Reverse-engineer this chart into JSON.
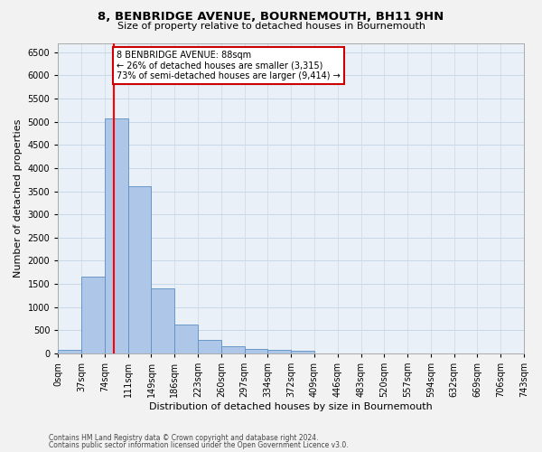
{
  "title": "8, BENBRIDGE AVENUE, BOURNEMOUTH, BH11 9HN",
  "subtitle": "Size of property relative to detached houses in Bournemouth",
  "xlabel": "Distribution of detached houses by size in Bournemouth",
  "ylabel": "Number of detached properties",
  "footer1": "Contains HM Land Registry data © Crown copyright and database right 2024.",
  "footer2": "Contains public sector information licensed under the Open Government Licence v3.0.",
  "bin_labels": [
    "0sqm",
    "37sqm",
    "74sqm",
    "111sqm",
    "149sqm",
    "186sqm",
    "223sqm",
    "260sqm",
    "297sqm",
    "334sqm",
    "372sqm",
    "409sqm",
    "446sqm",
    "483sqm",
    "520sqm",
    "557sqm",
    "594sqm",
    "632sqm",
    "669sqm",
    "706sqm",
    "743sqm"
  ],
  "bar_values": [
    75,
    1650,
    5075,
    3600,
    1410,
    615,
    290,
    145,
    100,
    75,
    55,
    0,
    0,
    0,
    0,
    0,
    0,
    0,
    0,
    0
  ],
  "bar_color": "#aec6e8",
  "bar_edge_color": "#5a8fc2",
  "red_line_x": 88,
  "annotation_line1": "8 BENBRIDGE AVENUE: 88sqm",
  "annotation_line2": "← 26% of detached houses are smaller (3,315)",
  "annotation_line3": "73% of semi-detached houses are larger (9,414) →",
  "ylim_max": 6700,
  "yticks": [
    0,
    500,
    1000,
    1500,
    2000,
    2500,
    3000,
    3500,
    4000,
    4500,
    5000,
    5500,
    6000,
    6500
  ],
  "grid_color": "#c8d8e8",
  "bg_color": "#eaf0f8",
  "fig_bg_color": "#f2f2f2",
  "bin_width": 37,
  "n_bins": 20
}
